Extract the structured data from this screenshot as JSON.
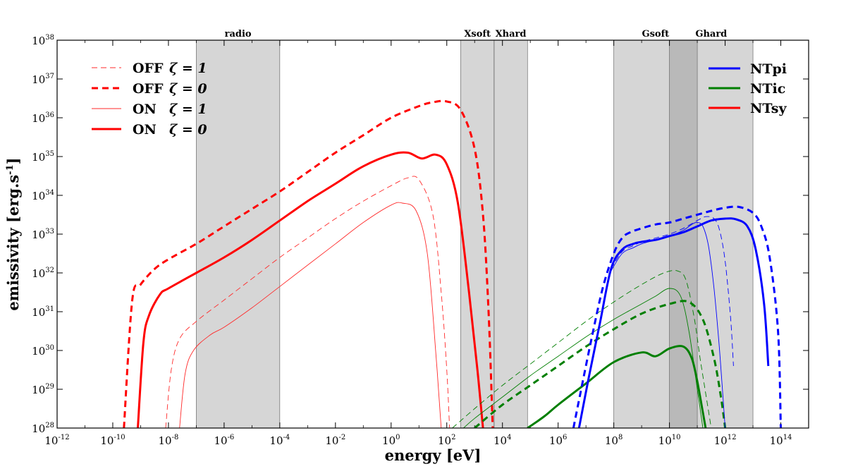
{
  "chart_data": {
    "type": "line",
    "title": "",
    "xlabel": "energy [eV]",
    "ylabel": "emissivity [erg.s^-1]",
    "xscale": "log",
    "yscale": "log",
    "xlim_log10": [
      -12,
      15
    ],
    "ylim_log10": [
      28,
      38
    ],
    "x_ticks": [
      {
        "base": "10",
        "exp": "-12",
        "value": -12
      },
      {
        "base": "10",
        "exp": "-10",
        "value": -10
      },
      {
        "base": "10",
        "exp": "-8",
        "value": -8
      },
      {
        "base": "10",
        "exp": "-6",
        "value": -6
      },
      {
        "base": "10",
        "exp": "-4",
        "value": -4
      },
      {
        "base": "10",
        "exp": "-2",
        "value": -2
      },
      {
        "base": "10",
        "exp": "0",
        "value": 0
      },
      {
        "base": "10",
        "exp": "2",
        "value": 2
      },
      {
        "base": "10",
        "exp": "4",
        "value": 4
      },
      {
        "base": "10",
        "exp": "6",
        "value": 6
      },
      {
        "base": "10",
        "exp": "8",
        "value": 8
      },
      {
        "base": "10",
        "exp": "10",
        "value": 10
      },
      {
        "base": "10",
        "exp": "12",
        "value": 12
      },
      {
        "base": "10",
        "exp": "14",
        "value": 14
      }
    ],
    "y_ticks": [
      {
        "base": "10",
        "exp": "28",
        "value": 28
      },
      {
        "base": "10",
        "exp": "29",
        "value": 29
      },
      {
        "base": "10",
        "exp": "30",
        "value": 30
      },
      {
        "base": "10",
        "exp": "31",
        "value": 31
      },
      {
        "base": "10",
        "exp": "32",
        "value": 32
      },
      {
        "base": "10",
        "exp": "33",
        "value": 33
      },
      {
        "base": "10",
        "exp": "34",
        "value": 34
      },
      {
        "base": "10",
        "exp": "35",
        "value": 35
      },
      {
        "base": "10",
        "exp": "36",
        "value": 36
      },
      {
        "base": "10",
        "exp": "37",
        "value": 37
      },
      {
        "base": "10",
        "exp": "38",
        "value": 38
      }
    ],
    "bands": [
      {
        "name": "radio",
        "label": "radio",
        "x_log10": [
          -7,
          -4
        ]
      },
      {
        "name": "xsoft",
        "label": "Xsoft",
        "x_log10": [
          2.5,
          3.7
        ]
      },
      {
        "name": "xhard",
        "label": "Xhard",
        "x_log10": [
          3.7,
          4.9
        ]
      },
      {
        "name": "gsoft",
        "label": "Gsoft",
        "x_log10": [
          8,
          11
        ]
      },
      {
        "name": "ghard",
        "label": "Ghard",
        "x_log10": [
          10,
          13
        ]
      }
    ],
    "legend_left": [
      {
        "label": "OFF",
        "zeta": "ζ = 1",
        "style": "thin-dashed",
        "color": "#ff2a2a"
      },
      {
        "label": "OFF",
        "zeta": "ζ = 0",
        "style": "thick-dashed",
        "color": "#ff0000"
      },
      {
        "label": "ON",
        "zeta": "ζ = 1",
        "style": "thin-solid",
        "color": "#ff2a2a"
      },
      {
        "label": "ON",
        "zeta": "ζ = 0",
        "style": "thick-solid",
        "color": "#ff0000"
      }
    ],
    "legend_right": [
      {
        "label": "NTpi",
        "color": "#0000ff"
      },
      {
        "label": "NTic",
        "color": "#007f00"
      },
      {
        "label": "NTsy",
        "color": "#ff0000"
      }
    ],
    "series": [
      {
        "name": "NTsy OFF ζ=0",
        "component": "NTsy",
        "color": "#ff0000",
        "style": "thick-dashed",
        "x_log10": [
          -9.6,
          -9.3,
          -9.0,
          -8.5,
          -8.0,
          -7.0,
          -6.0,
          -5.0,
          -4.0,
          -3.0,
          -2.0,
          -1.0,
          0.0,
          1.0,
          1.5,
          2.0,
          2.5,
          3.0,
          3.3,
          3.5,
          3.65
        ],
        "y_log10": [
          28.0,
          31.3,
          31.7,
          32.1,
          32.35,
          32.75,
          33.2,
          33.65,
          34.1,
          34.6,
          35.1,
          35.55,
          36.0,
          36.3,
          36.4,
          36.42,
          36.2,
          35.2,
          33.5,
          31.0,
          28.0
        ]
      },
      {
        "name": "NTsy ON ζ=0",
        "component": "NTsy",
        "color": "#ff0000",
        "style": "thick-solid",
        "x_log10": [
          -9.1,
          -8.9,
          -8.7,
          -8.3,
          -8.0,
          -7.0,
          -6.0,
          -5.0,
          -4.0,
          -3.0,
          -2.0,
          -1.0,
          0.0,
          0.6,
          1.1,
          1.6,
          2.0,
          2.4,
          2.8,
          3.1,
          3.3
        ],
        "y_log10": [
          28.0,
          30.2,
          30.9,
          31.45,
          31.6,
          32.0,
          32.4,
          32.85,
          33.35,
          33.85,
          34.3,
          34.75,
          35.05,
          35.1,
          34.95,
          35.05,
          34.8,
          33.8,
          31.5,
          29.5,
          28.0
        ]
      },
      {
        "name": "NTsy OFF ζ=1",
        "component": "NTsy",
        "color": "#ff2a2a",
        "style": "thin-dashed",
        "x_log10": [
          -8.1,
          -7.9,
          -7.6,
          -7.0,
          -6.0,
          -5.0,
          -4.0,
          -3.0,
          -2.0,
          -1.0,
          0.0,
          0.6,
          1.0,
          1.5,
          1.8,
          2.0,
          2.1
        ],
        "y_log10": [
          28.0,
          29.5,
          30.3,
          30.75,
          31.3,
          31.85,
          32.4,
          32.9,
          33.4,
          33.85,
          34.25,
          34.45,
          34.4,
          33.5,
          31.5,
          29.5,
          28.0
        ]
      },
      {
        "name": "NTsy ON ζ=1",
        "component": "NTsy",
        "color": "#ff2a2a",
        "style": "thin-solid",
        "x_log10": [
          -7.6,
          -7.4,
          -7.1,
          -6.5,
          -6.0,
          -5.0,
          -4.0,
          -3.0,
          -2.0,
          -1.0,
          0.0,
          0.4,
          0.9,
          1.3,
          1.6,
          1.8
        ],
        "y_log10": [
          28.0,
          29.4,
          30.0,
          30.4,
          30.6,
          31.1,
          31.65,
          32.2,
          32.75,
          33.3,
          33.75,
          33.8,
          33.6,
          32.5,
          30.0,
          28.0
        ]
      },
      {
        "name": "NTic OFF ζ=0",
        "component": "NTic",
        "color": "#007f00",
        "style": "thick-dashed",
        "x_log10": [
          3.0,
          4.0,
          5.0,
          6.0,
          7.0,
          8.0,
          9.0,
          10.0,
          10.7,
          11.2,
          11.6,
          11.85,
          12.0
        ],
        "y_log10": [
          28.0,
          28.6,
          29.1,
          29.6,
          30.1,
          30.55,
          30.95,
          31.2,
          31.25,
          30.8,
          29.8,
          28.8,
          28.0
        ]
      },
      {
        "name": "NTic ON ζ=0",
        "component": "NTic",
        "color": "#007f00",
        "style": "thick-solid",
        "x_log10": [
          4.9,
          5.5,
          6.0,
          7.0,
          8.0,
          9.0,
          9.5,
          10.0,
          10.5,
          10.8,
          11.0,
          11.2,
          11.3
        ],
        "y_log10": [
          28.0,
          28.3,
          28.6,
          29.15,
          29.7,
          29.95,
          29.85,
          30.05,
          30.1,
          29.8,
          29.2,
          28.4,
          28.0
        ]
      },
      {
        "name": "NTic OFF ζ=1",
        "component": "NTic",
        "color": "#007f00",
        "style": "thin-dashed",
        "x_log10": [
          2.2,
          3.0,
          4.0,
          5.0,
          6.0,
          7.0,
          8.0,
          9.0,
          9.8,
          10.3,
          10.6,
          10.9,
          11.1,
          11.3,
          11.5
        ],
        "y_log10": [
          28.0,
          28.5,
          29.1,
          29.65,
          30.2,
          30.75,
          31.25,
          31.7,
          32.0,
          32.05,
          31.8,
          30.8,
          29.8,
          28.9,
          28.0
        ]
      },
      {
        "name": "NTic ON ζ=1",
        "component": "NTic",
        "color": "#007f00",
        "style": "thin-solid",
        "x_log10": [
          2.6,
          3.0,
          4.0,
          5.0,
          6.0,
          7.0,
          8.0,
          9.0,
          9.5,
          10.0,
          10.4,
          10.7,
          11.0,
          11.2
        ],
        "y_log10": [
          28.0,
          28.25,
          28.8,
          29.35,
          29.85,
          30.35,
          30.8,
          31.2,
          31.4,
          31.6,
          31.4,
          30.5,
          29.0,
          28.0
        ]
      },
      {
        "name": "NTpi OFF ζ=0",
        "component": "NTpi",
        "color": "#0000ff",
        "style": "thick-dashed",
        "x_log10": [
          6.55,
          6.8,
          7.2,
          7.6,
          8.0,
          8.3,
          8.6,
          9.0,
          9.5,
          10.0,
          10.5,
          11.0,
          11.5,
          12.0,
          12.5,
          13.0,
          13.3,
          13.6,
          13.9,
          14.0
        ],
        "y_log10": [
          28.0,
          28.9,
          30.3,
          31.6,
          32.5,
          32.9,
          33.05,
          33.15,
          33.25,
          33.3,
          33.4,
          33.5,
          33.6,
          33.68,
          33.7,
          33.55,
          33.2,
          32.4,
          30.5,
          28.0
        ]
      },
      {
        "name": "NTpi ON ζ=0",
        "component": "NTpi",
        "color": "#0000ff",
        "style": "thick-solid",
        "x_log10": [
          6.75,
          7.1,
          7.5,
          7.9,
          8.3,
          8.7,
          9.0,
          9.5,
          10.0,
          10.5,
          11.0,
          11.5,
          12.0,
          12.4,
          12.8,
          13.1,
          13.4,
          13.55
        ],
        "y_log10": [
          28.0,
          29.3,
          30.7,
          32.1,
          32.6,
          32.75,
          32.8,
          32.85,
          32.95,
          33.05,
          33.2,
          33.35,
          33.4,
          33.38,
          33.2,
          32.6,
          31.2,
          29.6
        ]
      },
      {
        "name": "NTpi OFF ζ=1",
        "component": "NTpi",
        "color": "#0000ff",
        "style": "thin-dashed",
        "x_log10": [
          7.9,
          8.3,
          8.7,
          9.0,
          9.5,
          10.0,
          10.5,
          11.0,
          11.3,
          11.6,
          11.8,
          12.0,
          12.2,
          12.3
        ],
        "y_log10": [
          32.1,
          32.55,
          32.7,
          32.8,
          32.9,
          33.0,
          33.15,
          33.35,
          33.45,
          33.4,
          33.1,
          32.3,
          30.8,
          29.6
        ]
      },
      {
        "name": "NTpi ON ζ=1",
        "component": "NTpi",
        "color": "#0000ff",
        "style": "thin-solid",
        "x_log10": [
          7.9,
          8.3,
          8.7,
          9.0,
          9.5,
          10.0,
          10.5,
          10.8,
          11.0,
          11.2,
          11.4,
          11.6,
          11.8,
          12.0
        ],
        "y_log10": [
          32.05,
          32.5,
          32.65,
          32.75,
          32.85,
          32.95,
          33.1,
          33.25,
          33.3,
          33.2,
          32.7,
          31.6,
          30.0,
          28.0
        ]
      }
    ]
  }
}
